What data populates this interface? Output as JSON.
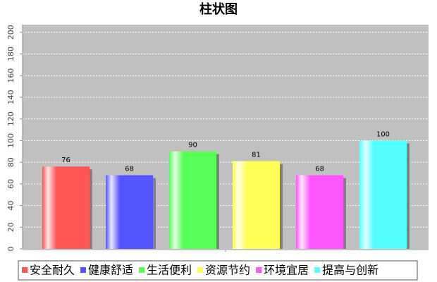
{
  "chart_data": {
    "type": "bar",
    "title": "柱状图",
    "categories": [
      "安全耐久",
      "健康舒适",
      "生活便利",
      "资源节约",
      "环境宜居",
      "提高与创新"
    ],
    "values": [
      76,
      68,
      90,
      81,
      68,
      100
    ],
    "colors": [
      "#ff5555",
      "#5555ff",
      "#55ff55",
      "#ffff55",
      "#ff55ff",
      "#55ffff"
    ],
    "ylim": [
      0,
      207
    ],
    "yticks": [
      0,
      20,
      40,
      60,
      80,
      100,
      120,
      140,
      160,
      180,
      200
    ],
    "grid": true,
    "legend": "bottom"
  }
}
